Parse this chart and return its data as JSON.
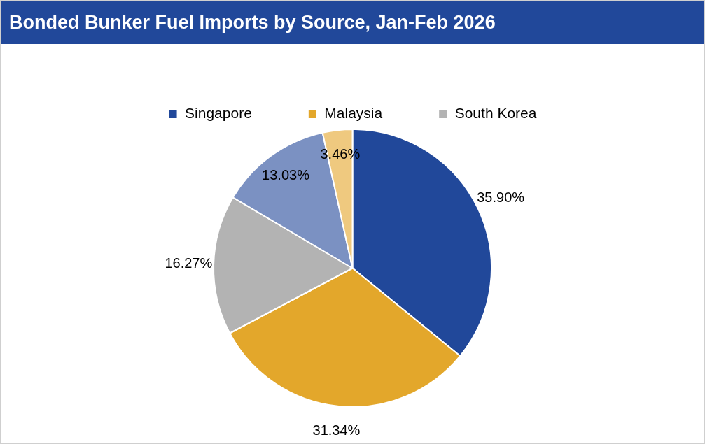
{
  "chart_data": {
    "type": "pie",
    "title": "Bonded Bunker Fuel Imports by Source, Jan-Feb 2026",
    "categories": [
      "Singapore",
      "Malaysia",
      "South Korea",
      null,
      null
    ],
    "values": [
      35.9,
      31.34,
      16.27,
      13.03,
      3.46
    ],
    "colors": [
      "#21489a",
      "#e3a72b",
      "#b3b3b3",
      "#7b91c2",
      "#efc97f"
    ],
    "value_labels": [
      "35.90%",
      "31.34%",
      "16.27%",
      "13.03%",
      "3.46%"
    ],
    "legend": "top"
  }
}
